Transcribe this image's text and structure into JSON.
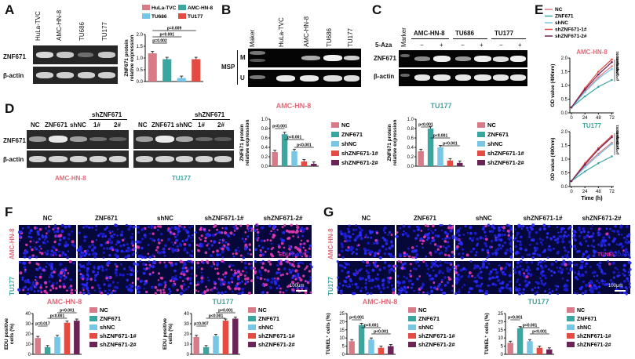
{
  "colors": {
    "NC": "#d87b86",
    "ZNF671": "#3aa6a0",
    "shNC": "#77c6e6",
    "sh1": "#e34b43",
    "sh2": "#6b2456",
    "HuLaTVC": "#d87b86",
    "AMCHN8": "#3aa6a0",
    "TU686": "#77c6e6",
    "TU177": "#e34b43",
    "amcTitle": "#e06a7a",
    "tuTitle": "#3aa6a0",
    "edu": "#d42aa0",
    "dapi": "#3333ff",
    "tunel": "#d42aa0"
  },
  "panelA": {
    "label": "A",
    "lanes": [
      "HuLa-TVC",
      "AMC-HN-8",
      "TU686",
      "TU177"
    ],
    "rows": [
      "ZNF671",
      "β-actin"
    ],
    "chart": {
      "ylabel": "ZNF671 protein\nrelative expression",
      "yticks": [
        "0.0",
        "0.5",
        "1.0",
        "1.5",
        "2.0"
      ],
      "legend": [
        "HuLa-TVC",
        "AMC-HN-8",
        "TU686",
        "TU177"
      ],
      "pvals": [
        "p=0.002",
        "p<0.001",
        "p=0.009"
      ]
    }
  },
  "panelB": {
    "label": "B",
    "lanes": [
      "Maker",
      "HuLa-TVC",
      "AMC-HN-8",
      "TU686",
      "TU177"
    ],
    "rowM": "M",
    "rowU": "U",
    "side": "MSP"
  },
  "panelC": {
    "label": "C",
    "marker": "Marker",
    "groups": [
      "AMC-HN-8",
      "TU686",
      "TU177"
    ],
    "aza": "5-Aza",
    "signs": [
      "−",
      "+",
      "−",
      "+",
      "−",
      "+"
    ],
    "rows": [
      "ZNF671",
      "β-actin"
    ]
  },
  "panelD": {
    "label": "D",
    "lanes": [
      "NC",
      "ZNF671",
      "shNC",
      "1#",
      "2#"
    ],
    "shlabel": "shZNF671",
    "rows": [
      "ZNF671",
      "β-actin"
    ],
    "cells": [
      "AMC-HN-8",
      "TU177"
    ],
    "ylabel": "ZNF671 protein\nrelative expression",
    "yticks": [
      "0.0",
      "0.2",
      "0.4",
      "0.6",
      "0.8",
      "1.0"
    ],
    "legend": [
      "NC",
      "ZNF671",
      "shNC",
      "shZNF671-1#",
      "shZNF671-2#"
    ],
    "pvals": [
      "p<0.001",
      "p<0.001",
      "p<0.001"
    ]
  },
  "panelE": {
    "label": "E",
    "legend": [
      "NC",
      "ZNF671",
      "shNC",
      "shZNF671-1#",
      "shZNF671-2#"
    ],
    "ylabel": "OD value (490nm)",
    "xlabel": "Time (h)",
    "xticks": [
      "0",
      "24",
      "48",
      "72"
    ],
    "yticks": [
      "0.0",
      "0.5",
      "1.0",
      "1.5",
      "2.0"
    ],
    "charts": [
      "AMC-HN-8",
      "TU177"
    ],
    "pvalsTop": [
      "p<0.001",
      "p=0.001",
      "p=0.004",
      "p=0.002"
    ],
    "pvalsBot": [
      "p<0.001",
      "p<0.001",
      "p<0.001",
      "p=0.035"
    ]
  },
  "panelF": {
    "label": "F",
    "cols": [
      "NC",
      "ZNF671",
      "shNC",
      "shZNF671-1#",
      "shZNF671-2#"
    ],
    "rows": [
      "AMC-HN-8",
      "TU177"
    ],
    "stain": [
      "EDU",
      "/DAPI"
    ],
    "scale": "100μm",
    "ylabel": "EDU positive\ncells (%)",
    "yticks": [
      "0",
      "10",
      "20",
      "30",
      "40"
    ],
    "pvals": [
      "p=0.017",
      "p<0.001",
      "p<0.001"
    ],
    "pvals2": [
      "p=0.007",
      "p<0.001",
      "p<0.001"
    ],
    "legend": [
      "NC",
      "ZNF671",
      "shNC",
      "shZNF671-1#",
      "shZNF671-2#"
    ]
  },
  "panelG": {
    "label": "G",
    "cols": [
      "NC",
      "ZNF671",
      "shNC",
      "shZNF671-1#",
      "shZNF671-2#"
    ],
    "rows": [
      "AMC-HN-8",
      "TU177"
    ],
    "stain": [
      "TUNEL",
      "/DAPI"
    ],
    "scale": "100μm",
    "ylabel": "TUNEL⁺ cells (%)",
    "yticks": [
      "0",
      "5",
      "10",
      "15",
      "20",
      "25"
    ],
    "pvals": [
      "p<0.001",
      "p<0.001",
      "p<0.001"
    ],
    "pvals2": [
      "p<0.001",
      "p<0.001",
      "p<0.001"
    ],
    "legend": [
      "NC",
      "ZNF671",
      "shNC",
      "shZNF671-1#",
      "shZNF671-2#"
    ]
  },
  "chart_data": [
    {
      "type": "bar",
      "categories": [
        "HuLa-TVC",
        "AMC-HN-8",
        "TU686",
        "TU177"
      ],
      "values": [
        1.2,
        0.95,
        0.15,
        0.95
      ],
      "ylim": [
        0,
        2
      ],
      "ylabel": "ZNF671 protein relative expression"
    },
    {
      "type": "bar",
      "categories": [
        "NC",
        "ZNF671",
        "shNC",
        "shZNF671-1#",
        "shZNF671-2#"
      ],
      "values": [
        0.3,
        0.68,
        0.32,
        0.1,
        0.05
      ],
      "ylim": [
        0,
        1.0
      ],
      "title": "AMC-HN-8"
    },
    {
      "type": "bar",
      "categories": [
        "NC",
        "ZNF671",
        "shNC",
        "shZNF671-1#",
        "shZNF671-2#"
      ],
      "values": [
        0.32,
        0.8,
        0.4,
        0.12,
        0.07
      ],
      "ylim": [
        0,
        1.0
      ],
      "title": "TU177"
    },
    {
      "type": "line",
      "title": "AMC-HN-8",
      "x": [
        0,
        24,
        48,
        72
      ],
      "ylim": [
        0,
        2.0
      ],
      "series": [
        {
          "name": "NC",
          "values": [
            0.2,
            0.8,
            1.3,
            1.7
          ]
        },
        {
          "name": "ZNF671",
          "values": [
            0.2,
            0.6,
            0.95,
            1.2
          ]
        },
        {
          "name": "shNC",
          "values": [
            0.2,
            0.75,
            1.25,
            1.6
          ]
        },
        {
          "name": "shZNF671-1#",
          "values": [
            0.2,
            0.9,
            1.5,
            1.95
          ]
        },
        {
          "name": "shZNF671-2#",
          "values": [
            0.2,
            0.85,
            1.4,
            1.85
          ]
        }
      ]
    },
    {
      "type": "line",
      "title": "TU177",
      "x": [
        0,
        24,
        48,
        72
      ],
      "ylim": [
        0,
        2.0
      ],
      "series": [
        {
          "name": "NC",
          "values": [
            0.2,
            0.75,
            1.2,
            1.6
          ]
        },
        {
          "name": "ZNF671",
          "values": [
            0.2,
            0.55,
            0.85,
            1.1
          ]
        },
        {
          "name": "shNC",
          "values": [
            0.2,
            0.7,
            1.15,
            1.55
          ]
        },
        {
          "name": "shZNF671-1#",
          "values": [
            0.2,
            0.85,
            1.4,
            1.85
          ]
        },
        {
          "name": "shZNF671-2#",
          "values": [
            0.2,
            0.8,
            1.35,
            1.8
          ]
        }
      ]
    },
    {
      "type": "bar",
      "title": "AMC-HN-8",
      "categories": [
        "NC",
        "ZNF671",
        "shNC",
        "shZNF671-1#",
        "shZNF671-2#"
      ],
      "values": [
        16,
        7,
        17,
        31,
        33
      ],
      "ylim": [
        0,
        40
      ],
      "ylabel": "EDU positive cells (%)"
    },
    {
      "type": "bar",
      "title": "TU177",
      "categories": [
        "NC",
        "ZNF671",
        "shNC",
        "shZNF671-1#",
        "shZNF671-2#"
      ],
      "values": [
        17,
        7,
        18,
        33,
        35
      ],
      "ylim": [
        0,
        40
      ],
      "ylabel": "EDU positive cells (%)"
    },
    {
      "type": "bar",
      "title": "AMC-HN-8",
      "categories": [
        "NC",
        "ZNF671",
        "shNC",
        "shZNF671-1#",
        "shZNF671-2#"
      ],
      "values": [
        8,
        18,
        9,
        4,
        5
      ],
      "ylim": [
        0,
        25
      ],
      "ylabel": "TUNEL+ cells (%)"
    },
    {
      "type": "bar",
      "title": "TU177",
      "categories": [
        "NC",
        "ZNF671",
        "shNC",
        "shZNF671-1#",
        "shZNF671-2#"
      ],
      "values": [
        7,
        16,
        8,
        4,
        3
      ],
      "ylim": [
        0,
        25
      ],
      "ylabel": "TUNEL+ cells (%)"
    }
  ]
}
